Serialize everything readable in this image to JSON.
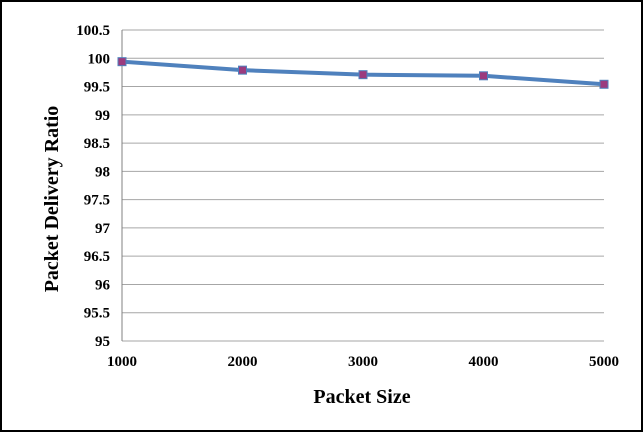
{
  "chart_data": {
    "type": "line",
    "title": "",
    "xlabel": "Packet Size",
    "ylabel": "Packet Delivery Ratio",
    "categories": [
      "1000",
      "2000",
      "3000",
      "4000",
      "5000"
    ],
    "series": [
      {
        "values": [
          99.94,
          99.79,
          99.71,
          99.69,
          99.54
        ]
      }
    ],
    "ylim": [
      95,
      100.5
    ],
    "yticks": [
      "95",
      "95.5",
      "96",
      "96.5",
      "97",
      "97.5",
      "98",
      "98.5",
      "99",
      "99.5",
      "100",
      "100.5"
    ],
    "grid": true,
    "legend": "none",
    "colors": {
      "line": "#4f81bd",
      "marker": "#9b3b7e",
      "grid": "#a6a6a6"
    }
  }
}
